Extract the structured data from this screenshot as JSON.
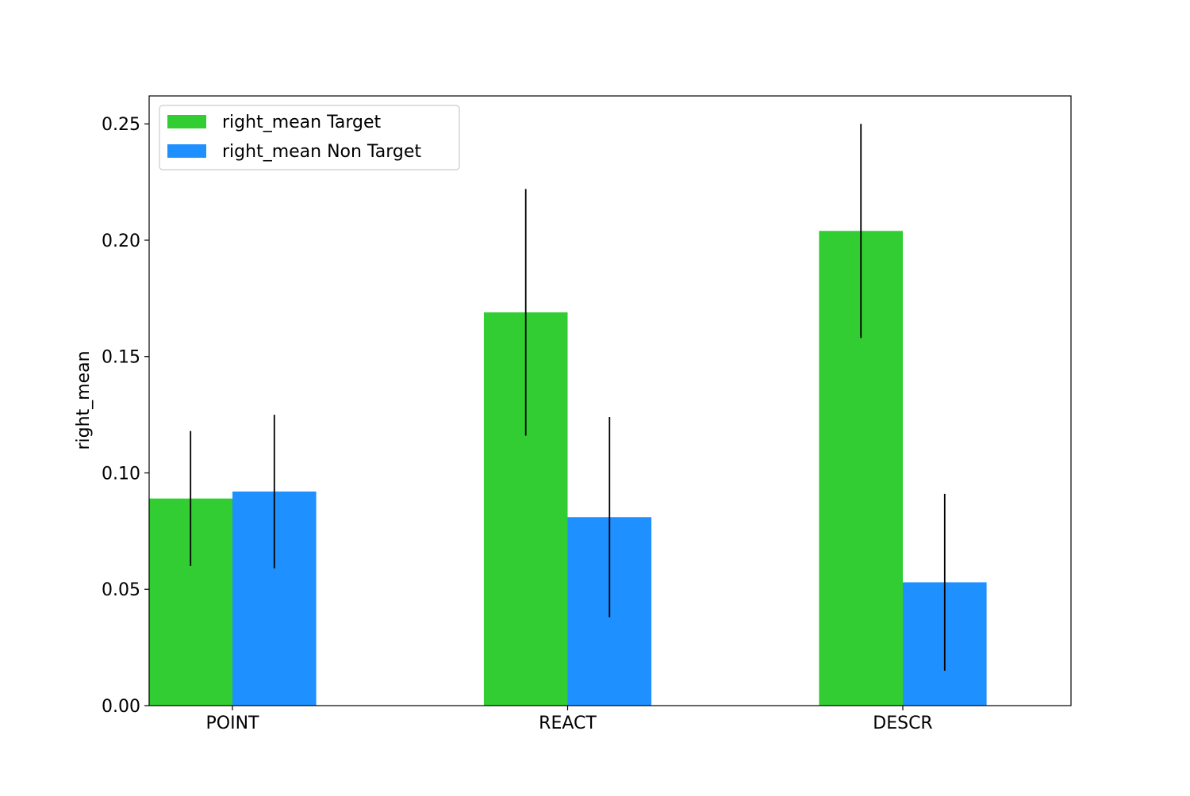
{
  "chart_data": {
    "type": "bar",
    "title": "",
    "xlabel": "",
    "ylabel": "right_mean",
    "categories": [
      "POINT",
      "REACT",
      "DESCR"
    ],
    "ylim": [
      0,
      0.262
    ],
    "yticks": [
      "0.00",
      "0.05",
      "0.10",
      "0.15",
      "0.20",
      "0.25"
    ],
    "grid": false,
    "legend_position": "top-left",
    "series": [
      {
        "name": "right_mean Target",
        "color": "#32cd32",
        "values": [
          0.089,
          0.169,
          0.204
        ],
        "error": [
          0.029,
          0.053,
          0.046
        ]
      },
      {
        "name": "right_mean Non Target",
        "color": "#1e90ff",
        "values": [
          0.092,
          0.081,
          0.053
        ],
        "error": [
          0.033,
          0.043,
          0.038
        ]
      }
    ]
  }
}
